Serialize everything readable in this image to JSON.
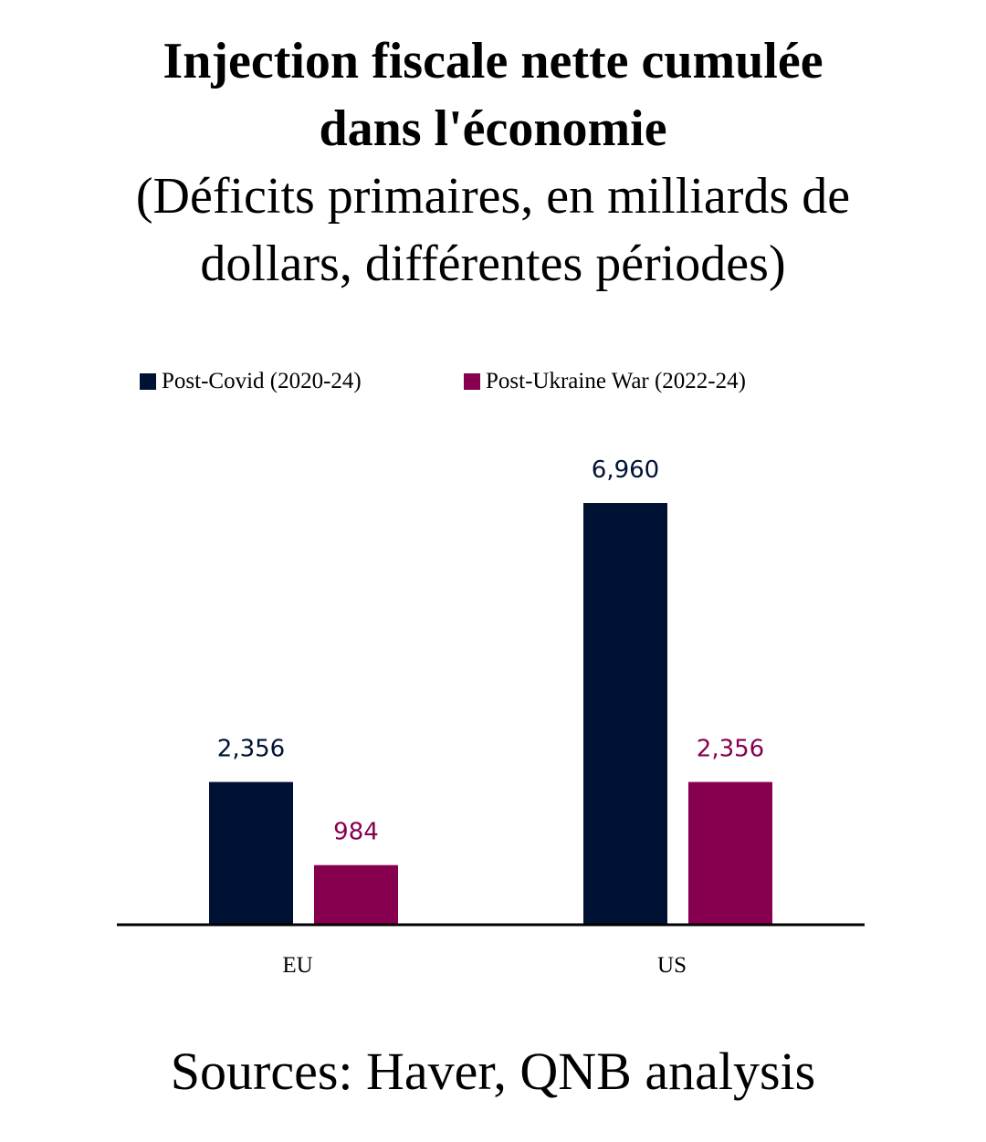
{
  "header": {
    "title_line1": "Injection fiscale nette cumulée",
    "title_line2": "dans l'économie",
    "subtitle_line1": "(Déficits primaires, en milliards de",
    "subtitle_line2": "dollars, différentes périodes)"
  },
  "legend": {
    "items": [
      {
        "label": "Post-Covid (2020-24)",
        "color": "#001233"
      },
      {
        "label": "Post-Ukraine War (2022-24)",
        "color": "#87004f"
      }
    ],
    "placement": "top"
  },
  "chart_data": {
    "type": "bar",
    "categories": [
      "EU",
      "US"
    ],
    "series": [
      {
        "name": "Post-Covid (2020-24)",
        "values": [
          2356,
          6960
        ],
        "labels": [
          "2,356",
          "6,960"
        ],
        "color": "#001233"
      },
      {
        "name": "Post-Ukraine War (2022-24)",
        "values": [
          984,
          2356
        ],
        "labels": [
          "984",
          "2,356"
        ],
        "color": "#87004f"
      }
    ],
    "ylim": [
      0,
      7000
    ],
    "grid": false,
    "legend": "top"
  },
  "footer": {
    "source": "Sources: Haver, QNB analysis"
  }
}
